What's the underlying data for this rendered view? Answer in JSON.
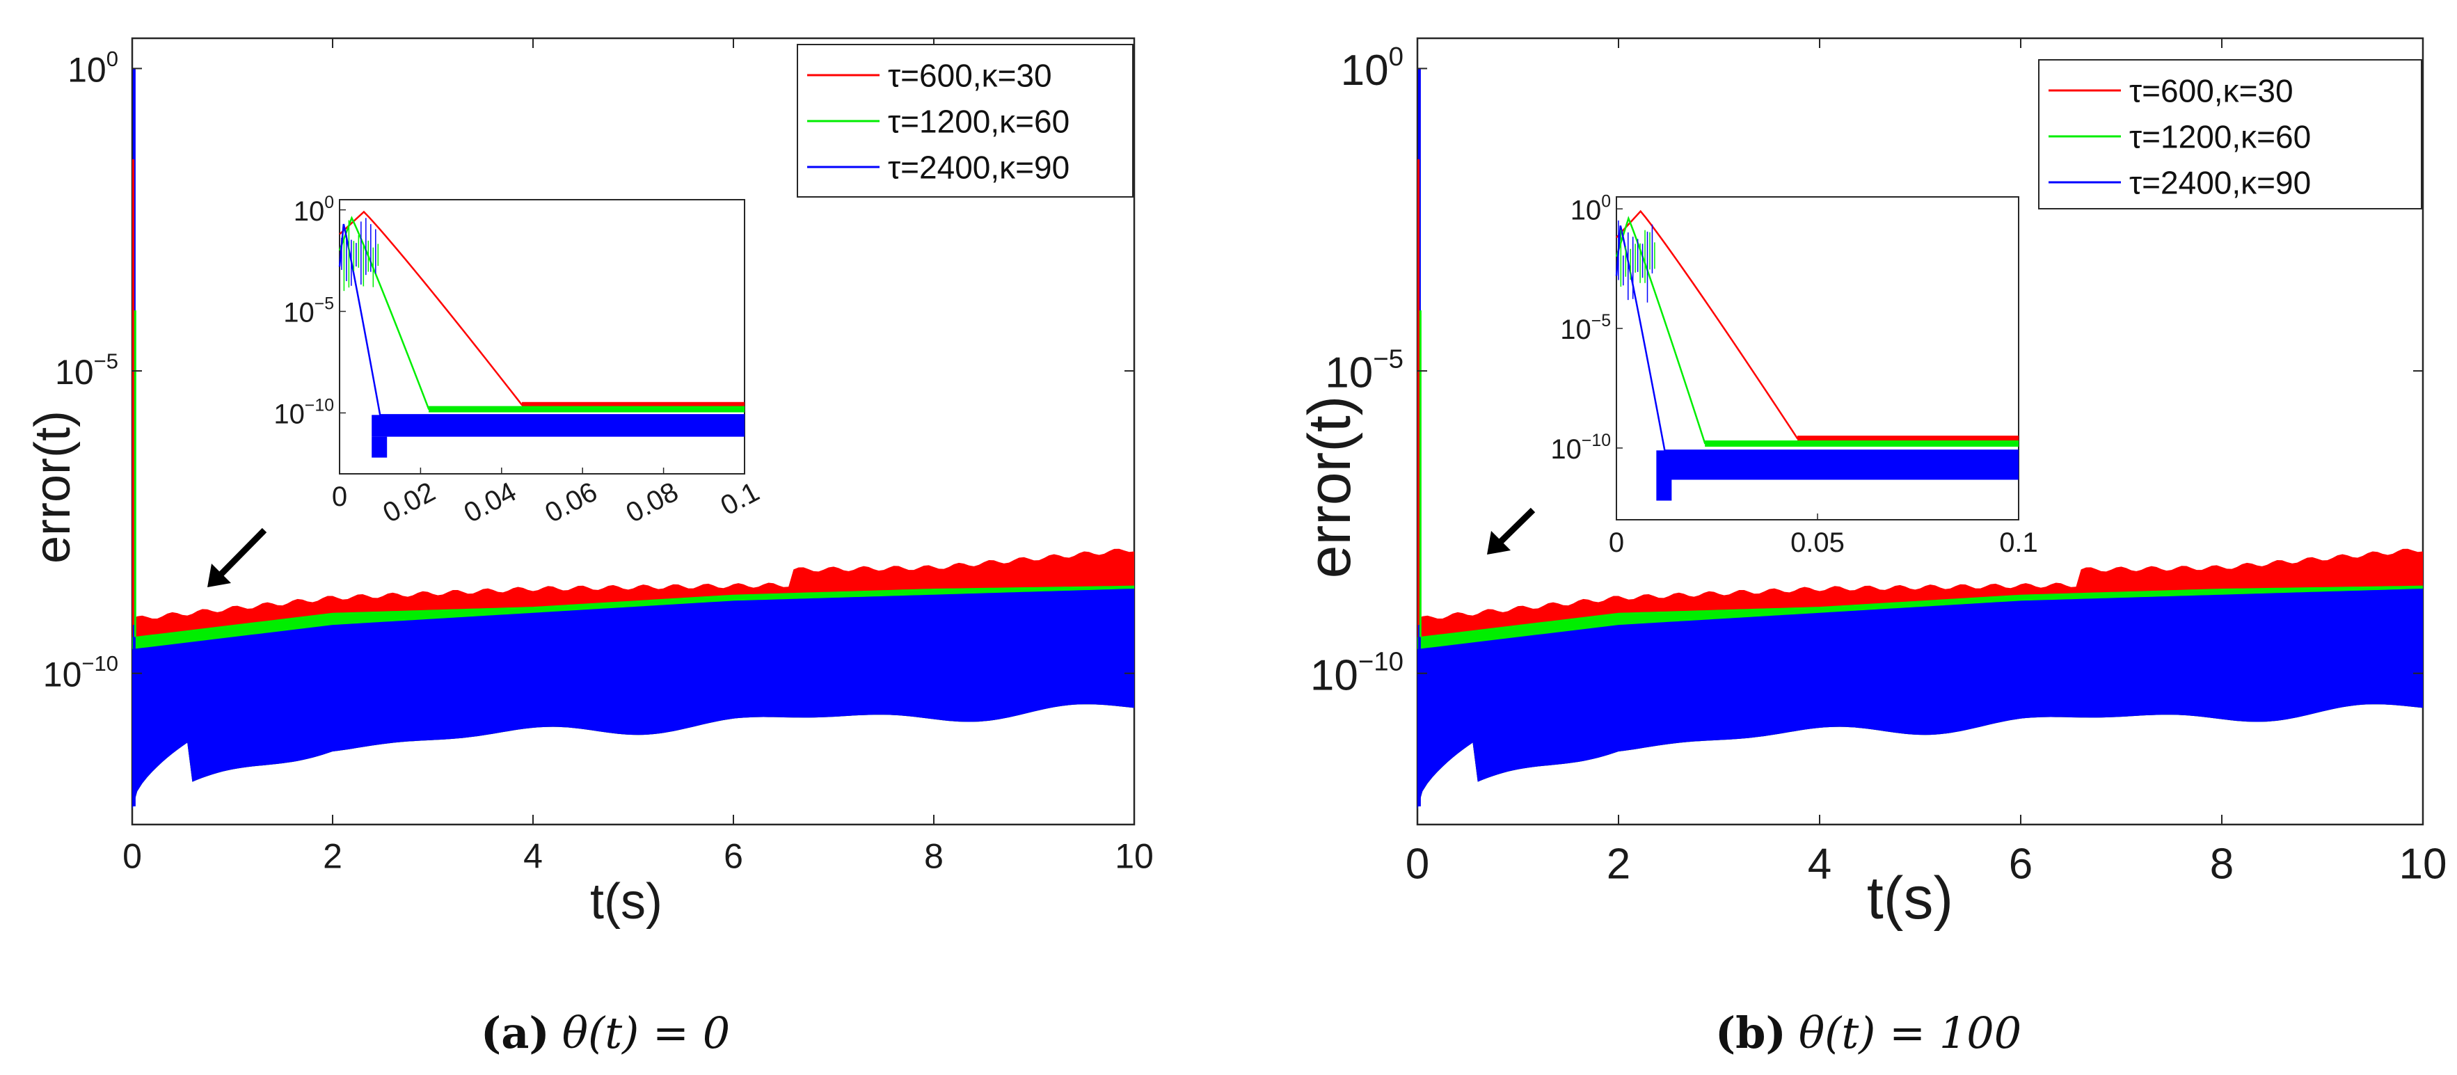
{
  "chart_data": [
    {
      "type": "line",
      "panel": "a",
      "xlabel": "t(s)",
      "ylabel": "error(t)",
      "xlim": [
        0,
        10
      ],
      "ylim_log10": [
        -12.5,
        0.5
      ],
      "xticks": [
        "0",
        "2",
        "4",
        "6",
        "8",
        "10"
      ],
      "yticks": [
        {
          "base": "10",
          "exp": "0"
        },
        {
          "base": "10",
          "exp": "−5"
        },
        {
          "base": "10",
          "exp": "−10"
        }
      ],
      "legend": [
        "τ=600,κ=30",
        "τ=1200,κ=60",
        "τ=2400,κ=90"
      ],
      "colors": [
        "#ff0000",
        "#00ee00",
        "#0000ff"
      ],
      "caption": {
        "label": "(a)",
        "text": "θ(t) = 0"
      },
      "inset": {
        "xlim": [
          0,
          0.1
        ],
        "ylim_log10": [
          -13,
          0.5
        ],
        "xticks": [
          "0",
          "0.02",
          "0.04",
          "0.06",
          "0.08",
          "0.1"
        ],
        "yticks": [
          {
            "base": "10",
            "exp": "0"
          },
          {
            "base": "10",
            "exp": "−5"
          },
          {
            "base": "10",
            "exp": "−10"
          }
        ],
        "series": [
          {
            "name": "τ=600,κ=30",
            "peak_t": 0.006,
            "decay_end_t": 0.045,
            "floor_log10": -9.6
          },
          {
            "name": "τ=1200,κ=60",
            "peak_t": 0.003,
            "decay_end_t": 0.022,
            "floor_log10": -9.8
          },
          {
            "name": "τ=2400,κ=90",
            "peak_t": 0.001,
            "decay_end_t": 0.01,
            "floor_log10": -10.1,
            "band_low_log10": -12.2
          }
        ]
      },
      "series": [
        {
          "name": "τ=600,κ=30",
          "initial": 1,
          "band_top_log10": [
            -9.1,
            -8.75,
            -8.6,
            -8.55,
            -8.5,
            -8.2
          ],
          "band_top_t": [
            0,
            1,
            3,
            6.6,
            9.5,
            10
          ]
        },
        {
          "name": "τ=1200,κ=60",
          "band_top_log10": [
            -9.4,
            -9.0,
            -8.9,
            -8.7,
            -8.6,
            -8.55
          ]
        },
        {
          "name": "τ=2400,κ=90",
          "band_top_log10": [
            -9.6,
            -9.2,
            -9.0,
            -8.8,
            -8.7,
            -8.6
          ],
          "band_low_log10": [
            -12.2,
            -11.2,
            -11.0,
            -10.8,
            -10.7,
            -10.6
          ]
        }
      ]
    },
    {
      "type": "line",
      "panel": "b",
      "xlabel": "t(s)",
      "ylabel": "error(t)",
      "xlim": [
        0,
        10
      ],
      "ylim_log10": [
        -12.5,
        0.5
      ],
      "xticks": [
        "0",
        "2",
        "4",
        "6",
        "8",
        "10"
      ],
      "yticks": [
        {
          "base": "10",
          "exp": "0"
        },
        {
          "base": "10",
          "exp": "−5"
        },
        {
          "base": "10",
          "exp": "−10"
        }
      ],
      "legend": [
        "τ=600,κ=30",
        "τ=1200,κ=60",
        "τ=2400,κ=90"
      ],
      "colors": [
        "#ff0000",
        "#00ee00",
        "#0000ff"
      ],
      "caption": {
        "label": "(b)",
        "text": "θ(t) = 100"
      },
      "inset": {
        "xlim": [
          0,
          0.1
        ],
        "ylim_log10": [
          -13,
          0.5
        ],
        "xticks": [
          "0",
          "0.05",
          "0.1"
        ],
        "yticks": [
          {
            "base": "10",
            "exp": "0"
          },
          {
            "base": "10",
            "exp": "−5"
          },
          {
            "base": "10",
            "exp": "−10"
          }
        ],
        "series": [
          {
            "name": "τ=600,κ=30",
            "peak_t": 0.006,
            "decay_end_t": 0.045,
            "floor_log10": -9.6
          },
          {
            "name": "τ=1200,κ=60",
            "peak_t": 0.003,
            "decay_end_t": 0.022,
            "floor_log10": -9.8
          },
          {
            "name": "τ=2400,κ=90",
            "peak_t": 0.001,
            "decay_end_t": 0.012,
            "floor_log10": -10.1,
            "band_low_log10": -12.2
          }
        ]
      },
      "series": [
        {
          "name": "τ=600,κ=30",
          "initial": 1,
          "band_top_log10": [
            -9.1,
            -8.75,
            -8.6,
            -8.55,
            -8.5,
            -8.2
          ],
          "band_top_t": [
            0,
            1,
            3,
            6.6,
            9.5,
            10
          ]
        },
        {
          "name": "τ=1200,κ=60",
          "band_top_log10": [
            -9.4,
            -9.0,
            -8.9,
            -8.7,
            -8.6,
            -8.55
          ]
        },
        {
          "name": "τ=2400,κ=90",
          "band_top_log10": [
            -9.6,
            -9.2,
            -9.0,
            -8.8,
            -8.7,
            -8.6
          ],
          "band_low_log10": [
            -12.2,
            -11.2,
            -11.0,
            -10.8,
            -10.7,
            -10.6
          ]
        }
      ]
    }
  ]
}
